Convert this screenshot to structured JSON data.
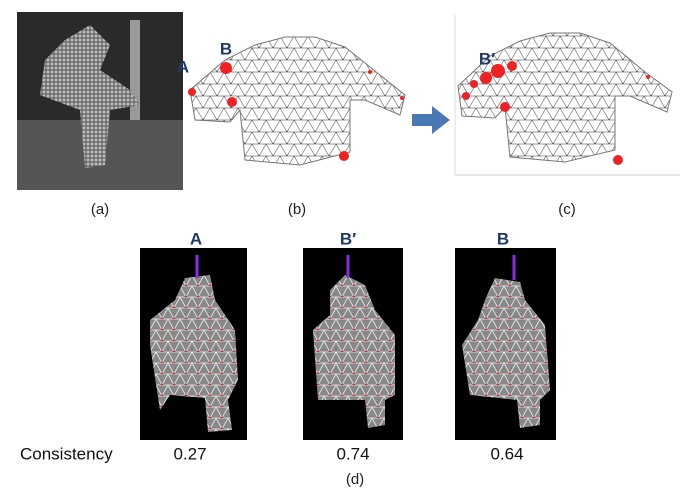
{
  "panel_a": {
    "caption": "(a)"
  },
  "panel_b": {
    "caption": "(b)",
    "labels": [
      "A",
      "B"
    ]
  },
  "panel_c": {
    "caption": "(c)",
    "labels": [
      "B′"
    ]
  },
  "panel_d": {
    "caption": "(d)",
    "columns": [
      "A",
      "B′",
      "B"
    ],
    "row_label": "Consistency",
    "values": [
      0.27,
      0.74,
      0.64
    ]
  }
}
